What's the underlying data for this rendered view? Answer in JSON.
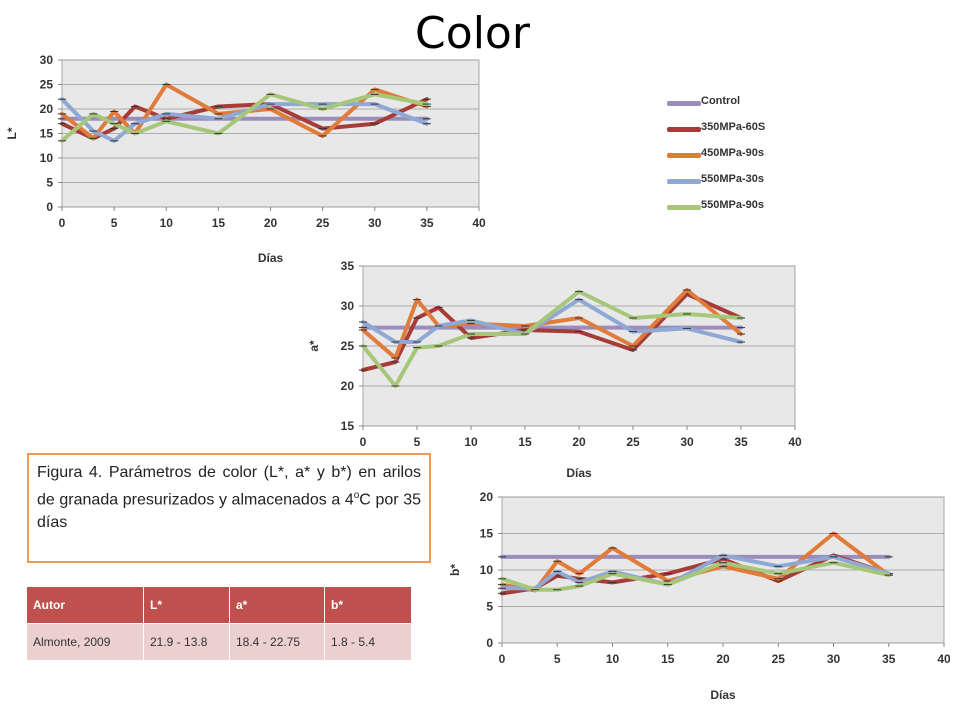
{
  "title": "Color",
  "legend": [
    {
      "label": "Control",
      "color": "#9b8dbb"
    },
    {
      "label": "350MPa-60S",
      "color": "#a63c38"
    },
    {
      "label": "450MPa-90s",
      "color": "#e07b39"
    },
    {
      "label": "550MPa-30s",
      "color": "#8fa8d4"
    },
    {
      "label": "550MPa-90s",
      "color": "#a6c77a"
    }
  ],
  "caption": {
    "text": "Figura 4. Parámetros de color (L*, a* y b*) en arilos de granada presurizados y almacenados a 4",
    "sup": "o",
    "tail": "C por 35 días"
  },
  "table": {
    "headers": [
      "Autor",
      "L*",
      "a*",
      "b*"
    ],
    "rows": [
      [
        "Almonte, 2009",
        "21.9 - 13.8",
        "18.4 - 22.75",
        "1.8 - 5.4"
      ]
    ]
  },
  "chart_data": [
    {
      "type": "line",
      "ylabel": "L*",
      "xlabel": "Días",
      "xlim": [
        0,
        40
      ],
      "ylim": [
        0,
        30
      ],
      "xticks": [
        0,
        5,
        10,
        15,
        20,
        25,
        30,
        35,
        40
      ],
      "yticks": [
        0,
        5,
        10,
        15,
        20,
        25,
        30
      ],
      "grid": true,
      "series": [
        {
          "name": "Control",
          "x": [
            0,
            35
          ],
          "y": [
            18,
            18
          ]
        },
        {
          "name": "350MPa-60S",
          "x": [
            0,
            3,
            5,
            7,
            10,
            15,
            20,
            25,
            30,
            35
          ],
          "y": [
            17,
            14,
            16,
            20.5,
            18,
            20.5,
            21,
            16,
            17,
            22
          ]
        },
        {
          "name": "450MPa-90s",
          "x": [
            0,
            3,
            5,
            7,
            10,
            15,
            20,
            25,
            30,
            35
          ],
          "y": [
            19,
            14,
            19.5,
            15,
            25,
            19,
            20,
            14.5,
            24,
            20.5
          ]
        },
        {
          "name": "550MPa-30s",
          "x": [
            0,
            3,
            5,
            7,
            10,
            15,
            20,
            25,
            30,
            35
          ],
          "y": [
            22,
            15.5,
            13.5,
            17,
            19,
            18,
            21,
            21,
            21,
            17
          ]
        },
        {
          "name": "550MPa-90s",
          "x": [
            0,
            3,
            5,
            7,
            10,
            15,
            20,
            25,
            30,
            35
          ],
          "y": [
            13.5,
            19,
            17,
            15,
            17.5,
            15,
            23,
            20,
            23,
            21
          ]
        }
      ]
    },
    {
      "type": "line",
      "ylabel": "a*",
      "xlabel": "Días",
      "xlim": [
        0,
        40
      ],
      "ylim": [
        15,
        35
      ],
      "xticks": [
        0,
        5,
        10,
        15,
        20,
        25,
        30,
        35,
        40
      ],
      "yticks": [
        15,
        20,
        25,
        30,
        35
      ],
      "grid": true,
      "series": [
        {
          "name": "Control",
          "x": [
            0,
            35
          ],
          "y": [
            27.3,
            27.3
          ]
        },
        {
          "name": "350MPa-60S",
          "x": [
            0,
            3,
            5,
            7,
            10,
            15,
            20,
            25,
            30,
            35
          ],
          "y": [
            22,
            23,
            28.5,
            29.8,
            26,
            27,
            26.8,
            24.5,
            31.5,
            28.5
          ]
        },
        {
          "name": "450MPa-90s",
          "x": [
            0,
            3,
            5,
            7,
            10,
            15,
            20,
            25,
            30,
            35
          ],
          "y": [
            27,
            23.5,
            30.8,
            27.5,
            27.8,
            27.5,
            28.5,
            25,
            32,
            26.5
          ]
        },
        {
          "name": "550MPa-30s",
          "x": [
            0,
            3,
            5,
            7,
            10,
            15,
            20,
            25,
            30,
            35
          ],
          "y": [
            28,
            25.5,
            25.5,
            27.5,
            28.2,
            26.5,
            30.8,
            26.8,
            27.2,
            25.5
          ]
        },
        {
          "name": "550MPa-90s",
          "x": [
            0,
            3,
            5,
            7,
            10,
            15,
            20,
            25,
            30,
            35
          ],
          "y": [
            25,
            20,
            24.8,
            25,
            26.5,
            26.5,
            31.8,
            28.5,
            29,
            28.5
          ]
        }
      ]
    },
    {
      "type": "line",
      "ylabel": "b*",
      "xlabel": "Días",
      "xlim": [
        0,
        40
      ],
      "ylim": [
        0,
        20
      ],
      "xticks": [
        0,
        5,
        10,
        15,
        20,
        25,
        30,
        35,
        40
      ],
      "yticks": [
        0,
        5,
        10,
        15,
        20
      ],
      "grid": true,
      "series": [
        {
          "name": "Control",
          "x": [
            0,
            35
          ],
          "y": [
            11.8,
            11.8
          ]
        },
        {
          "name": "350MPa-60S",
          "x": [
            0,
            3,
            5,
            7,
            10,
            15,
            20,
            25,
            30,
            35
          ],
          "y": [
            6.8,
            7.5,
            9.2,
            8.8,
            8.3,
            9.5,
            11.5,
            8.5,
            12,
            9.5
          ]
        },
        {
          "name": "450MPa-90s",
          "x": [
            0,
            3,
            5,
            7,
            10,
            15,
            20,
            25,
            30,
            35
          ],
          "y": [
            8,
            7.2,
            11.2,
            9.5,
            13,
            8.5,
            10.5,
            8.8,
            15,
            9.3
          ]
        },
        {
          "name": "550MPa-30s",
          "x": [
            0,
            3,
            5,
            7,
            10,
            15,
            20,
            25,
            30,
            35
          ],
          "y": [
            7.5,
            7.5,
            9.8,
            8.3,
            9.8,
            8,
            12,
            10.5,
            11.8,
            9.5
          ]
        },
        {
          "name": "550MPa-90s",
          "x": [
            0,
            3,
            5,
            7,
            10,
            15,
            20,
            25,
            30,
            35
          ],
          "y": [
            8.8,
            7.3,
            7.3,
            7.8,
            9.5,
            8,
            11,
            9.5,
            11,
            9.3
          ]
        }
      ]
    }
  ]
}
